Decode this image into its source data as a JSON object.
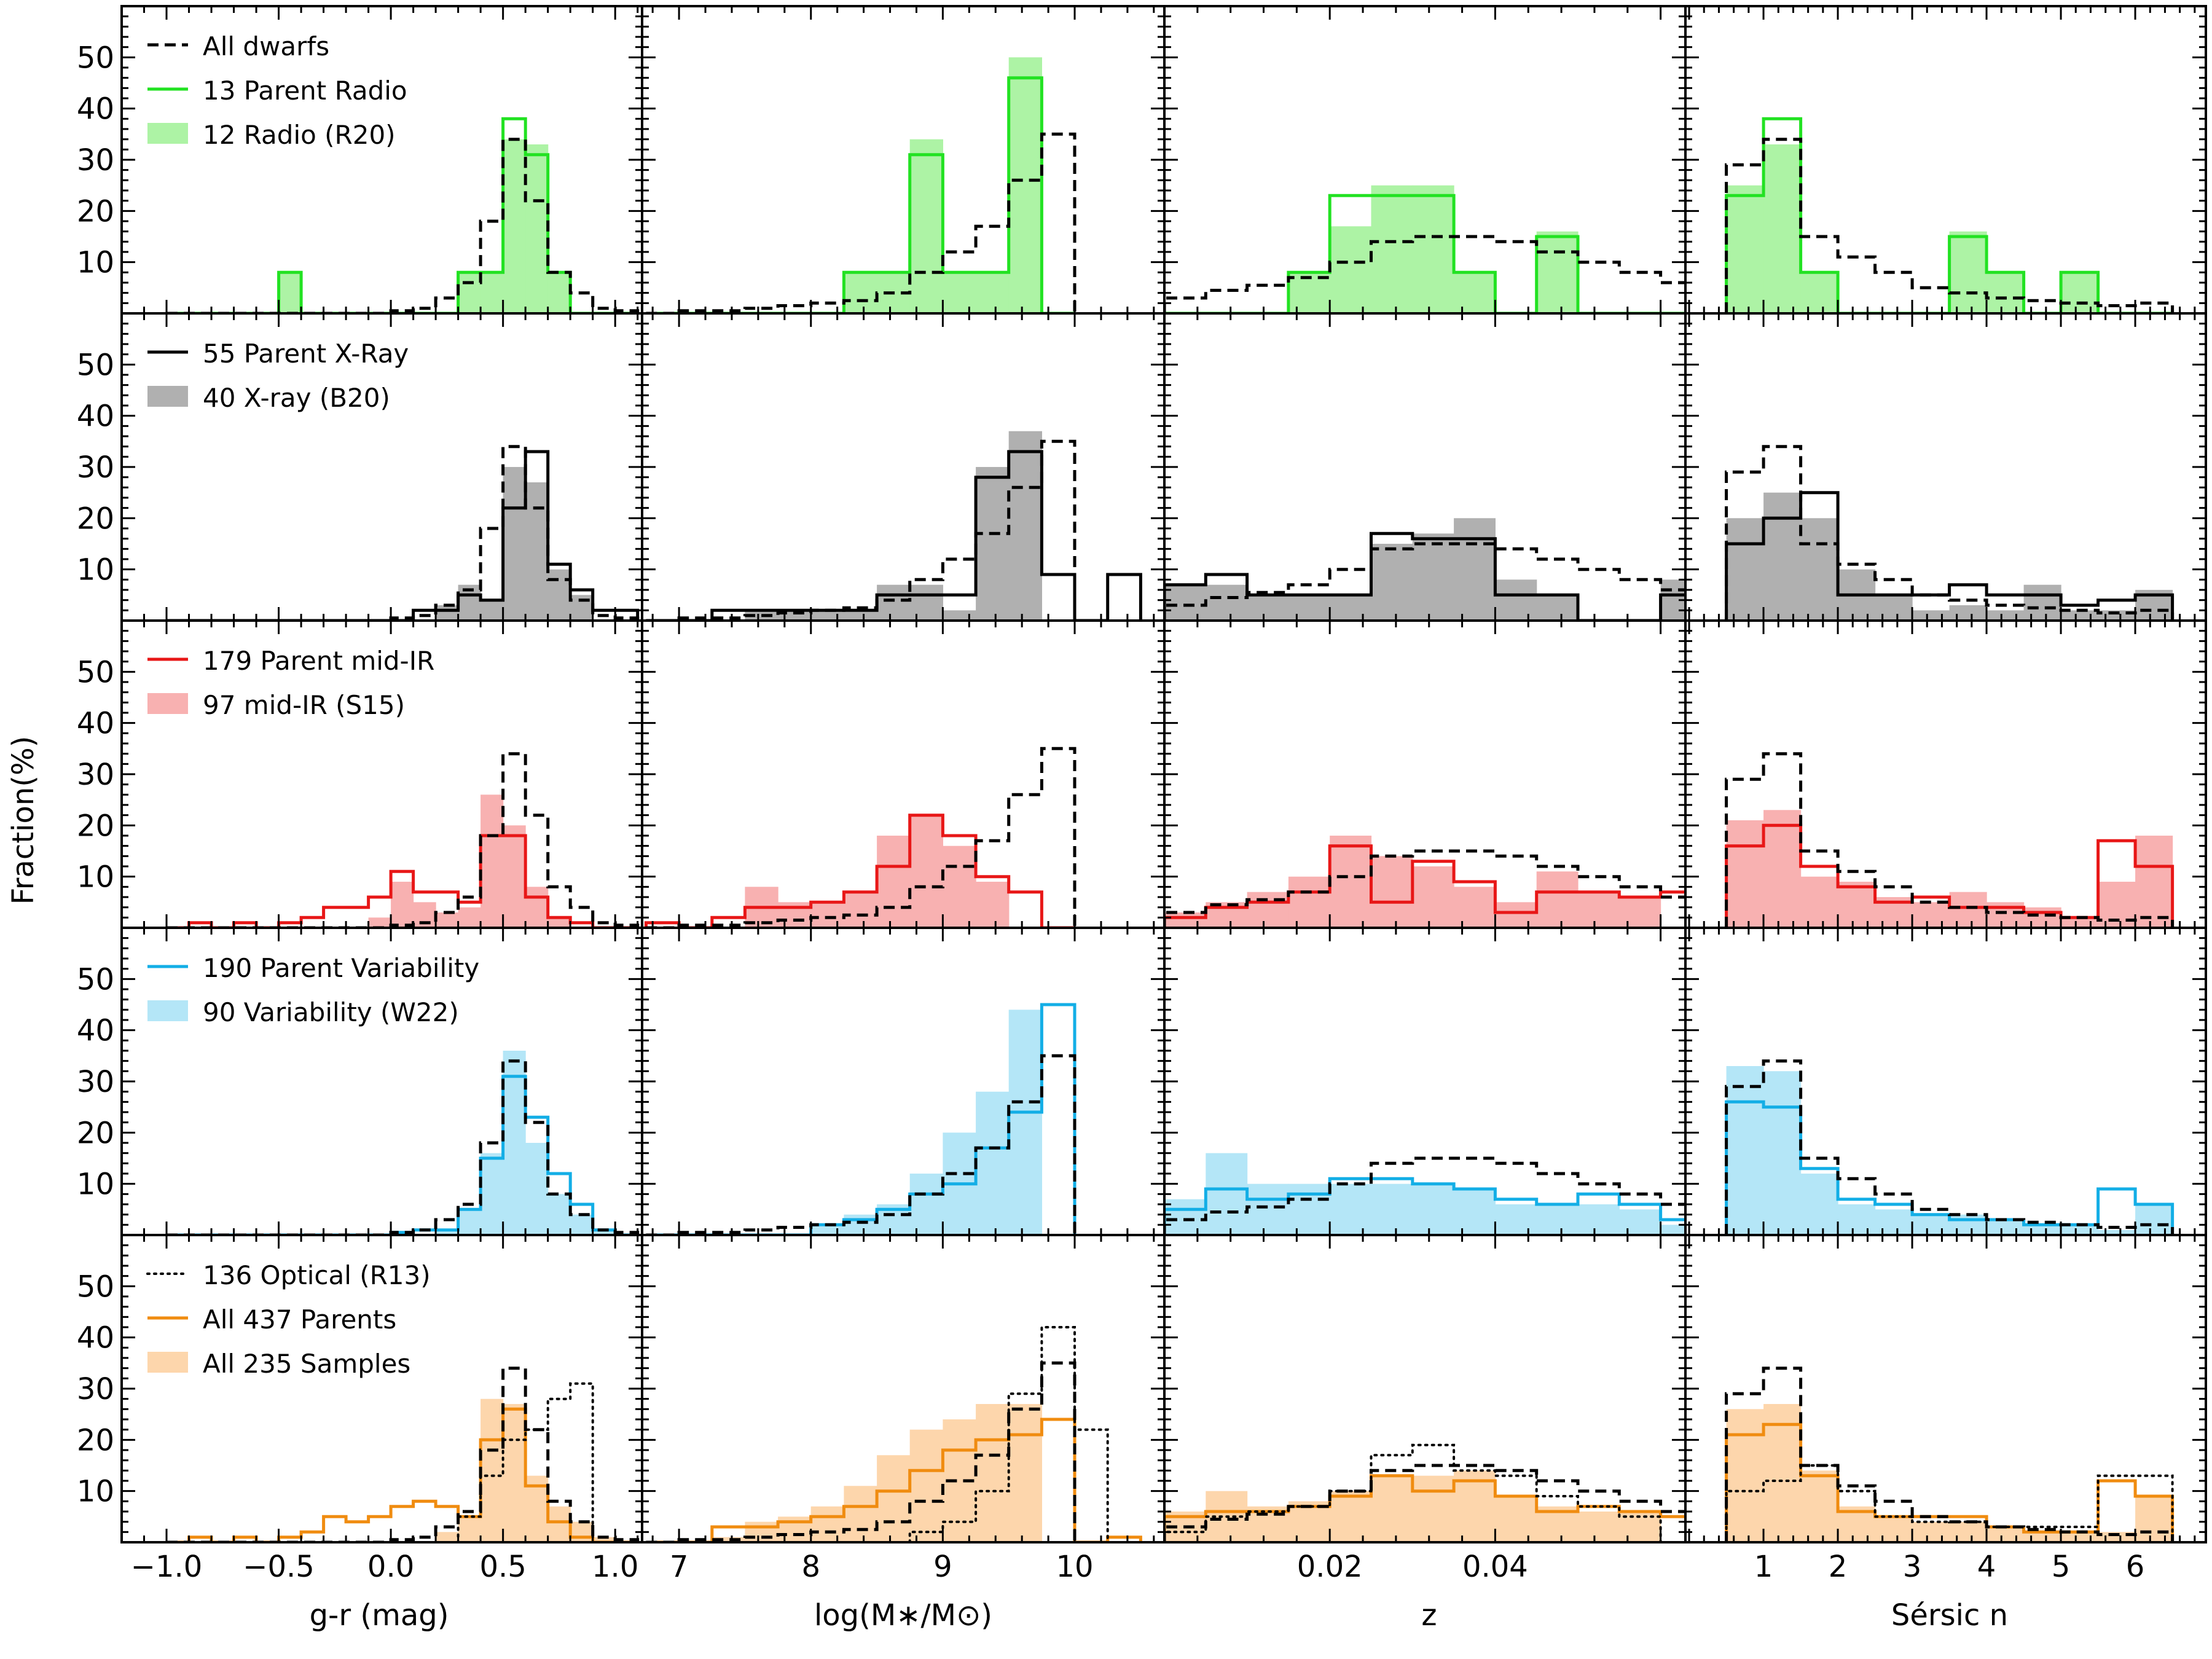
{
  "figure": {
    "ylabel": "Fraction(%)",
    "xlabels": [
      "g-r (mag)",
      "log(M∗/M⊙)",
      "z",
      "Sérsic n"
    ]
  },
  "colors": {
    "radio": "#22e222",
    "radio_fill": "#adf3a5",
    "xray": "#000000",
    "xray_fill": "#b0b0b0",
    "midir": "#e81717",
    "midir_fill": "#f8b1b1",
    "var": "#13aee6",
    "var_fill": "#b4e6f7",
    "all": "#f08c10",
    "all_fill": "#fdd6ac",
    "dwarfs": "#000000",
    "optical": "#000000"
  },
  "legends": [
    [
      {
        "label": "All dwarfs",
        "kind": "dash",
        "color": "dwarfs"
      },
      {
        "label": "13 Parent Radio",
        "kind": "line",
        "color": "radio"
      },
      {
        "label": "12 Radio (R20)",
        "kind": "patch",
        "color": "radio_fill"
      }
    ],
    [
      {
        "label": "55 Parent X-Ray",
        "kind": "line",
        "color": "xray"
      },
      {
        "label": "40 X-ray (B20)",
        "kind": "patch",
        "color": "xray_fill"
      }
    ],
    [
      {
        "label": "179 Parent mid-IR",
        "kind": "line",
        "color": "midir"
      },
      {
        "label": "97 mid-IR (S15)",
        "kind": "patch",
        "color": "midir_fill"
      }
    ],
    [
      {
        "label": "190 Parent Variability",
        "kind": "line",
        "color": "var"
      },
      {
        "label": "90 Variability (W22)",
        "kind": "patch",
        "color": "var_fill"
      }
    ],
    [
      {
        "label": "136 Optical (R13)",
        "kind": "dot",
        "color": "optical"
      },
      {
        "label": "All 437 Parents",
        "kind": "line",
        "color": "all"
      },
      {
        "label": "All 235 Samples",
        "kind": "patch",
        "color": "all_fill"
      }
    ]
  ],
  "chart_data": {
    "type": "bar",
    "layout": "5 rows x 4 columns of step histograms",
    "ylim": [
      0,
      60
    ],
    "yticks": [
      10,
      20,
      30,
      40,
      50
    ],
    "columns": [
      {
        "xlabel": "g-r (mag)",
        "xlim": [
          -1.2,
          1.12
        ],
        "xticks": [
          -1.0,
          -0.5,
          0.0,
          0.5,
          1.0
        ],
        "xticklabels": [
          "−1.0",
          "−0.5",
          "0.0",
          "0.5",
          "1.0"
        ],
        "bin_start": -1.0,
        "bin_width": 0.1,
        "dwarfs": [
          0,
          0,
          0,
          0,
          0,
          0,
          0,
          0,
          0,
          0,
          0.5,
          1,
          3,
          6,
          18,
          34,
          22,
          8,
          4,
          1,
          0.5
        ],
        "optical": [
          0,
          0,
          0,
          0,
          0,
          0,
          0,
          0,
          0,
          0,
          0,
          0,
          0,
          5,
          13,
          20,
          22,
          28,
          31,
          0,
          0
        ]
      },
      {
        "xlabel": "log(M∗/M⊙)",
        "xlim": [
          6.72,
          10.68
        ],
        "xticks": [
          7,
          8,
          9,
          10
        ],
        "xticklabels": [
          "7",
          "8",
          "9",
          "10"
        ],
        "bin_start": 6.75,
        "bin_width": 0.25,
        "dwarfs": [
          0,
          0.5,
          0.5,
          1,
          1.5,
          2,
          2.5,
          4,
          8,
          12,
          17,
          26,
          35
        ],
        "optical": [
          0,
          0,
          0,
          0,
          0,
          0,
          0,
          0,
          2,
          4,
          10,
          29,
          42,
          22
        ]
      },
      {
        "xlabel": "z",
        "xlim": [
          0.0,
          0.063
        ],
        "xticks": [
          0.02,
          0.04
        ],
        "xticklabels": [
          "0.02",
          "0.04"
        ],
        "bin_start": 0.0,
        "bin_width": 0.005,
        "dwarfs": [
          3,
          4.5,
          5.5,
          7,
          10,
          14,
          15,
          15,
          14,
          12,
          10,
          8,
          6
        ],
        "optical": [
          2,
          5,
          6,
          7,
          10,
          17,
          19,
          14,
          13,
          9,
          7,
          5,
          0
        ]
      },
      {
        "xlabel": "Sérsic n",
        "xlim": [
          -0.05,
          6.95
        ],
        "xticks": [
          1,
          2,
          3,
          4,
          5,
          6
        ],
        "xticklabels": [
          "1",
          "2",
          "3",
          "4",
          "5",
          "6"
        ],
        "bin_start": 0.5,
        "bin_width": 0.5,
        "dwarfs": [
          29,
          34,
          15,
          11,
          8,
          5,
          4,
          3,
          2.5,
          2,
          1.5,
          2
        ],
        "optical": [
          10,
          12,
          15,
          10,
          5,
          4,
          4,
          3,
          3,
          3,
          13,
          13
        ]
      }
    ],
    "rows": [
      {
        "name": "Radio",
        "parent_color": "radio",
        "fill_color": "radio_fill",
        "show_optical": false,
        "panels": [
          {
            "samples": [
              0,
              0,
              0,
              0,
              0,
              8,
              0,
              0,
              0,
              0,
              0,
              0,
              0,
              8,
              8,
              34,
              33,
              8,
              0,
              0,
              0
            ],
            "parent": [
              0,
              0,
              0,
              0,
              0,
              8,
              0,
              0,
              0,
              0,
              0,
              0,
              0,
              8,
              8,
              38,
              31,
              8,
              0,
              0,
              0
            ]
          },
          {
            "samples": [
              0,
              0,
              0,
              0,
              0,
              0,
              8,
              8,
              34,
              8,
              8,
              50,
              0
            ],
            "parent": [
              0,
              0,
              0,
              0,
              0,
              0,
              8,
              8,
              31,
              8,
              8,
              46,
              0
            ]
          },
          {
            "samples": [
              0,
              0,
              0,
              8,
              17,
              25,
              25,
              8,
              0,
              16,
              0,
              0,
              0
            ],
            "parent": [
              0,
              0,
              0,
              8,
              23,
              23,
              23,
              8,
              0,
              15,
              0,
              0,
              0
            ]
          },
          {
            "samples": [
              25,
              33,
              8,
              0,
              0,
              0,
              16,
              8,
              0,
              8,
              0,
              0
            ],
            "parent": [
              23,
              38,
              8,
              0,
              0,
              0,
              15,
              8,
              0,
              8,
              0,
              0
            ]
          }
        ]
      },
      {
        "name": "X-ray",
        "parent_color": "xray",
        "fill_color": "xray_fill",
        "show_optical": false,
        "panels": [
          {
            "samples": [
              0,
              0,
              0,
              0,
              0,
              0,
              0,
              0,
              0,
              0,
              0,
              0,
              3,
              7,
              4,
              30,
              27,
              10,
              5,
              0,
              0
            ],
            "parent": [
              0,
              0,
              0,
              0,
              0,
              0,
              0,
              0,
              0,
              0,
              0,
              2,
              2,
              5,
              4,
              22,
              33,
              11,
              6,
              2,
              2
            ]
          },
          {
            "samples": [
              0,
              0,
              0,
              2,
              2,
              2,
              2,
              7,
              7,
              2,
              30,
              37,
              0,
              0,
              0
            ],
            "parent": [
              0,
              0,
              2,
              2,
              2,
              2,
              2,
              5,
              5,
              5,
              28,
              33,
              9,
              0,
              9
            ]
          },
          {
            "samples": [
              7,
              7,
              5,
              5,
              5,
              15,
              17,
              20,
              8,
              5,
              0,
              0,
              8
            ],
            "parent": [
              7,
              9,
              5,
              5,
              5,
              17,
              16,
              16,
              5,
              5,
              0,
              0,
              5
            ]
          },
          {
            "samples": [
              20,
              25,
              20,
              10,
              5,
              2,
              3,
              2,
              7,
              2,
              2,
              6
            ],
            "parent": [
              15,
              20,
              25,
              5,
              5,
              5,
              7,
              5,
              5,
              3,
              4,
              5
            ]
          }
        ]
      },
      {
        "name": "mid-IR",
        "parent_color": "midir",
        "fill_color": "midir_fill",
        "show_optical": false,
        "panels": [
          {
            "samples": [
              0,
              0,
              0,
              0,
              0,
              0,
              0,
              0,
              0,
              2,
              9,
              5,
              3,
              4,
              26,
              20,
              8,
              2,
              0,
              0,
              0
            ],
            "parent": [
              0,
              1,
              0,
              1,
              0,
              1,
              2,
              4,
              4,
              6,
              11,
              7,
              7,
              5,
              18,
              18,
              6,
              2,
              1,
              0,
              0
            ]
          },
          {
            "samples": [
              0,
              0,
              0,
              8,
              5,
              5,
              7,
              18,
              22,
              16,
              9,
              0,
              0
            ],
            "parent": [
              1,
              0,
              2,
              4,
              4,
              5,
              7,
              12,
              22,
              18,
              10,
              7,
              0
            ]
          },
          {
            "samples": [
              3,
              5,
              7,
              10,
              18,
              14,
              12,
              8,
              5,
              11,
              7,
              6,
              0
            ],
            "parent": [
              2,
              4,
              5,
              7,
              16,
              5,
              13,
              9,
              3,
              7,
              7,
              6,
              7
            ]
          },
          {
            "samples": [
              21,
              23,
              10,
              9,
              6,
              5,
              7,
              5,
              4,
              2,
              9,
              18
            ],
            "parent": [
              16,
              20,
              12,
              8,
              5,
              6,
              4,
              4,
              3,
              2,
              17,
              12
            ]
          }
        ]
      },
      {
        "name": "Variability",
        "parent_color": "var",
        "fill_color": "var_fill",
        "show_optical": false,
        "panels": [
          {
            "samples": [
              0,
              0,
              0,
              0,
              0,
              0,
              0,
              0,
              0,
              0,
              0,
              0,
              1,
              5,
              16,
              36,
              18,
              8,
              4,
              1,
              0
            ],
            "parent": [
              0,
              0,
              0,
              0,
              0,
              0,
              0,
              0,
              0,
              0,
              0.5,
              1,
              1,
              5,
              15,
              31,
              23,
              12,
              6,
              1,
              0
            ]
          },
          {
            "samples": [
              0,
              0,
              0,
              0,
              0,
              2,
              4,
              6,
              12,
              20,
              28,
              44,
              0
            ],
            "parent": [
              0,
              0,
              0,
              0,
              0,
              2,
              3,
              5,
              8,
              10,
              17,
              24,
              45
            ]
          },
          {
            "samples": [
              7,
              16,
              10,
              10,
              10,
              10,
              10,
              9,
              6,
              6,
              6,
              5,
              2
            ],
            "parent": [
              5,
              9,
              7,
              8,
              11,
              11,
              10,
              9,
              7,
              6,
              8,
              6,
              3
            ]
          },
          {
            "samples": [
              33,
              32,
              12,
              6,
              5,
              4,
              4,
              3,
              2,
              2,
              1,
              6
            ],
            "parent": [
              26,
              25,
              13,
              7,
              6,
              4,
              3,
              3,
              2,
              2,
              9,
              6
            ]
          }
        ]
      },
      {
        "name": "All",
        "parent_color": "all",
        "fill_color": "all_fill",
        "show_optical": true,
        "panels": [
          {
            "samples": [
              0,
              0,
              0,
              0,
              0,
              0,
              0,
              0,
              0,
              0,
              0,
              0,
              2,
              5,
              28,
              27,
              13,
              7,
              4,
              1,
              0
            ],
            "parent": [
              0,
              1,
              0,
              1,
              0,
              1,
              2,
              5,
              4,
              5,
              7,
              8,
              7,
              5,
              20,
              26,
              11,
              4,
              1,
              0,
              0
            ]
          },
          {
            "samples": [
              0,
              0,
              1,
              4,
              5,
              7,
              11,
              17,
              22,
              24,
              27,
              27,
              0
            ],
            "parent": [
              0,
              0,
              3,
              3,
              4,
              5,
              7,
              10,
              14,
              18,
              20,
              21,
              24,
              0,
              1
            ]
          },
          {
            "samples": [
              6,
              10,
              7,
              8,
              10,
              13,
              13,
              14,
              9,
              7,
              6,
              6,
              0
            ],
            "parent": [
              5,
              6,
              6,
              7,
              9,
              13,
              10,
              12,
              9,
              6,
              7,
              6,
              5
            ]
          },
          {
            "samples": [
              26,
              27,
              14,
              7,
              5,
              4,
              4,
              3,
              2,
              2,
              2,
              9
            ],
            "parent": [
              21,
              23,
              13,
              6,
              5,
              5,
              5,
              3,
              2,
              2,
              12,
              9
            ]
          }
        ]
      }
    ]
  }
}
